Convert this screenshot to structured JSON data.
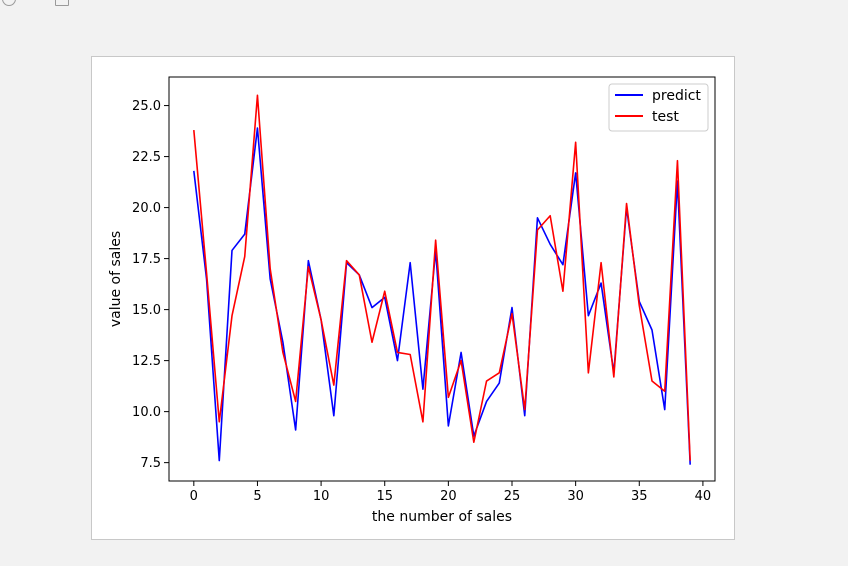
{
  "chart_data": {
    "type": "line",
    "title": "",
    "xlabel": "the number of sales",
    "ylabel": "value of sales",
    "xlim": [
      -1.95,
      40.95
    ],
    "ylim": [
      6.6,
      26.4
    ],
    "xticks": [
      0,
      5,
      10,
      15,
      20,
      25,
      30,
      35,
      40
    ],
    "yticks": [
      7.5,
      10.0,
      12.5,
      15.0,
      17.5,
      20.0,
      22.5,
      25.0
    ],
    "ytick_labels": [
      "7.5",
      "10.0",
      "12.5",
      "15.0",
      "17.5",
      "20.0",
      "22.5",
      "25.0"
    ],
    "grid": false,
    "legend_position": "top-right",
    "x": [
      0,
      1,
      2,
      3,
      4,
      5,
      6,
      7,
      8,
      9,
      10,
      11,
      12,
      13,
      14,
      15,
      16,
      17,
      18,
      19,
      20,
      21,
      22,
      23,
      24,
      25,
      26,
      27,
      28,
      29,
      30,
      31,
      32,
      33,
      34,
      35,
      36,
      37,
      38,
      39
    ],
    "series": [
      {
        "name": "predict",
        "color": "#0000ff",
        "values": [
          21.8,
          16.5,
          7.6,
          17.9,
          18.7,
          23.9,
          16.5,
          13.4,
          9.1,
          17.4,
          14.5,
          9.8,
          17.3,
          16.7,
          15.1,
          15.6,
          12.5,
          17.3,
          11.1,
          17.9,
          9.3,
          12.9,
          8.8,
          10.5,
          11.4,
          15.1,
          9.8,
          19.5,
          18.2,
          17.2,
          21.7,
          14.7,
          16.3,
          11.9,
          20.0,
          15.4,
          14.0,
          10.1,
          21.3,
          7.4
        ]
      },
      {
        "name": "test",
        "color": "#ff0000",
        "values": [
          23.8,
          16.8,
          9.5,
          14.7,
          17.6,
          25.5,
          17.0,
          12.9,
          10.5,
          17.1,
          14.5,
          11.3,
          17.4,
          16.7,
          13.4,
          15.9,
          12.9,
          12.8,
          9.5,
          18.4,
          10.7,
          12.5,
          8.5,
          11.5,
          11.9,
          14.8,
          10.1,
          18.9,
          19.6,
          15.9,
          23.2,
          11.9,
          17.3,
          11.7,
          20.2,
          15.2,
          11.5,
          11.0,
          22.3,
          7.6
        ]
      }
    ]
  }
}
